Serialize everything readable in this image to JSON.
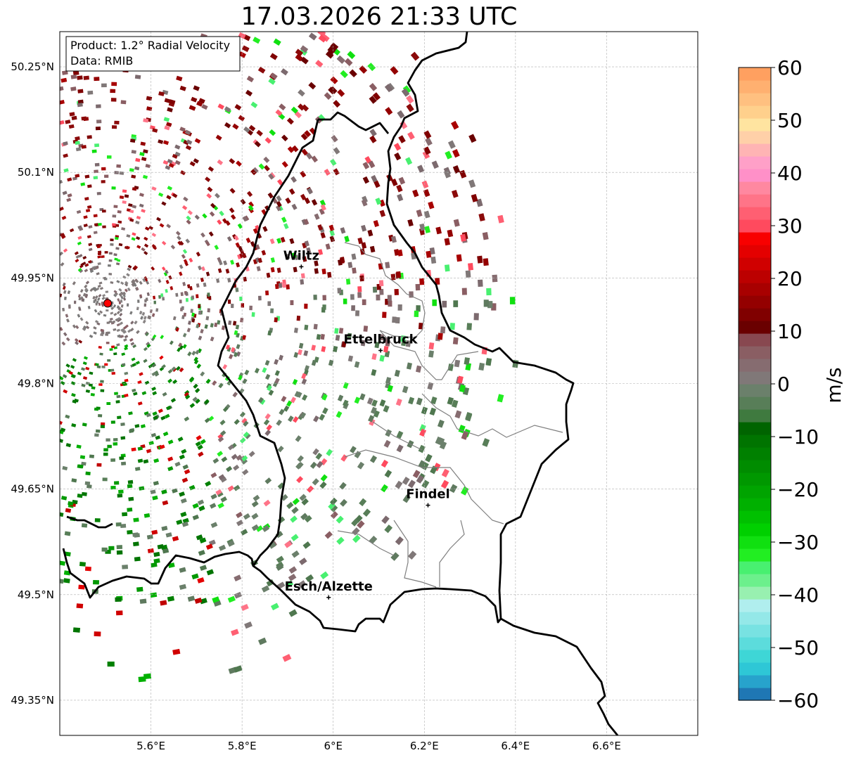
{
  "title": "17.03.2026 21:33 UTC",
  "info": {
    "product_line": "Product: 1.2° Radial Velocity",
    "data_line": "Data: RMIB"
  },
  "map": {
    "lon_range": [
      5.4,
      6.8
    ],
    "lat_range": [
      49.3,
      50.3
    ],
    "lat_ticks": [
      {
        "value": 50.25,
        "label": "50.25°N"
      },
      {
        "value": 50.1,
        "label": "50.1°N"
      },
      {
        "value": 49.95,
        "label": "49.95°N"
      },
      {
        "value": 49.8,
        "label": "49.8°N"
      },
      {
        "value": 49.65,
        "label": "49.65°N"
      },
      {
        "value": 49.5,
        "label": "49.5°N"
      },
      {
        "value": 49.35,
        "label": "49.35°N"
      }
    ],
    "lon_ticks": [
      {
        "value": 5.6,
        "label": "5.6°E"
      },
      {
        "value": 5.8,
        "label": "5.8°E"
      },
      {
        "value": 6.0,
        "label": "6°E"
      },
      {
        "value": 6.2,
        "label": "6.2°E"
      },
      {
        "value": 6.4,
        "label": "6.4°E"
      },
      {
        "value": 6.6,
        "label": "6.6°E"
      }
    ],
    "cities": [
      {
        "name": "Wiltz",
        "lon": 5.93,
        "lat": 49.966
      },
      {
        "name": "Ettelbruck",
        "lon": 6.104,
        "lat": 49.847
      },
      {
        "name": "Findel",
        "lon": 6.208,
        "lat": 49.627
      },
      {
        "name": "Esch/Alzette",
        "lon": 5.99,
        "lat": 49.496
      }
    ],
    "radar_site": {
      "lon": 5.505,
      "lat": 49.914
    },
    "seed": 1234
  },
  "colorbar": {
    "unit": "m/s",
    "vmin": -60,
    "vmax": 60,
    "ticks": [
      "60",
      "50",
      "40",
      "30",
      "20",
      "10",
      "0",
      "−10",
      "−20",
      "−30",
      "−40",
      "−50",
      "−60"
    ],
    "tick_values": [
      60,
      50,
      40,
      30,
      20,
      10,
      0,
      -10,
      -20,
      -30,
      -40,
      -50,
      -60
    ],
    "colors": [
      "#1f77b4",
      "#27a3cc",
      "#2ec7d6",
      "#3ed6d6",
      "#5cdcdc",
      "#78e2e2",
      "#94e8e8",
      "#b0eeee",
      "#98f0b0",
      "#6cf08c",
      "#48f070",
      "#22ee22",
      "#10e010",
      "#00d000",
      "#00c000",
      "#00b000",
      "#00a400",
      "#009800",
      "#008c00",
      "#008000",
      "#007400",
      "#006400",
      "#3f7a3f",
      "#587e58",
      "#6b806b",
      "#807878",
      "#866c70",
      "#8a5e63",
      "#884850",
      "#6a0000",
      "#800000",
      "#940000",
      "#a80000",
      "#bc0000",
      "#d00000",
      "#e40000",
      "#f80000",
      "#ff4a5e",
      "#ff5f72",
      "#ff7488",
      "#ff88a0",
      "#ff90c8",
      "#ffa0c8",
      "#ffb4b4",
      "#ffd0a8",
      "#ffe4a0",
      "#ffd08c",
      "#ffc080",
      "#ffb070",
      "#ffa060"
    ]
  }
}
